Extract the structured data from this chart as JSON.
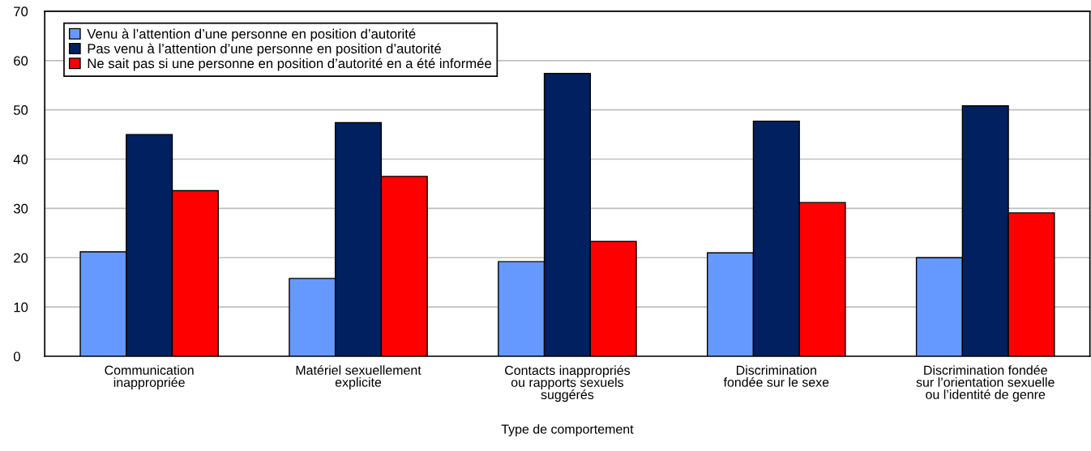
{
  "chart_data": {
    "type": "bar",
    "xlabel": "Type de comportement",
    "categories": [
      "Communication\ninappropriée",
      "Matériel sexuellement\nexplicite",
      "Contacts inappropriés\nou rapports sexuels\nsuggérés",
      "Discrimination\nfondée sur le sexe",
      "Discrimination fondée\nsur l’orientation sexuelle\nou l’identité de genre"
    ],
    "series": [
      {
        "name": "Venu à l’attention d’une personne en position d’autorité",
        "color": "#6699ff",
        "values": [
          21.2,
          15.8,
          19.2,
          21.0,
          20.0
        ]
      },
      {
        "name": "Pas venu à l’attention d’une personne en position d’autorité",
        "color": "#002060",
        "values": [
          45.0,
          47.4,
          57.4,
          47.7,
          50.8
        ]
      },
      {
        "name": "Ne sait pas si une personne en position d’autorité en a été informée",
        "color": "#ff0000",
        "values": [
          33.6,
          36.5,
          23.3,
          31.2,
          29.1
        ]
      }
    ],
    "ylim": [
      0,
      70
    ],
    "yticks": [
      0,
      10,
      20,
      30,
      40,
      50,
      60,
      70
    ],
    "grid": "y",
    "legend": "top left"
  }
}
